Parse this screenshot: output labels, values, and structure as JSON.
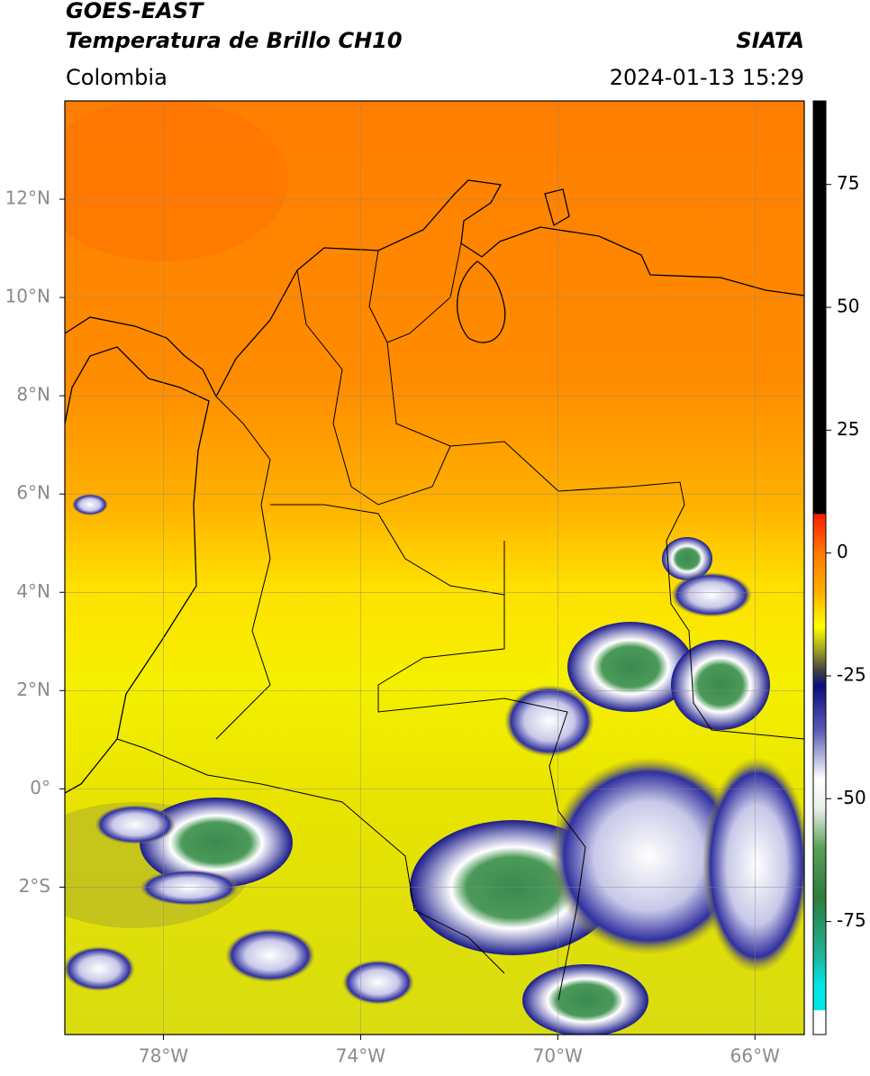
{
  "chart_data": {
    "type": "map",
    "title": "GOES-EAST",
    "subtitle": "Temperatura de Brillo CH10",
    "source": "SIATA",
    "region": "Colombia",
    "timestamp": "2024-01-13 15:29",
    "xlim": [
      -80,
      -65
    ],
    "ylim": [
      -5,
      14
    ],
    "xticks": [
      {
        "value": -78,
        "label": "78°W"
      },
      {
        "value": -74,
        "label": "74°W"
      },
      {
        "value": -70,
        "label": "70°W"
      },
      {
        "value": -66,
        "label": "66°W"
      }
    ],
    "yticks": [
      {
        "value": 12,
        "label": "12°N"
      },
      {
        "value": 10,
        "label": "10°N"
      },
      {
        "value": 8,
        "label": "8°N"
      },
      {
        "value": 6,
        "label": "6°N"
      },
      {
        "value": 4,
        "label": "4°N"
      },
      {
        "value": 2,
        "label": "2°N"
      },
      {
        "value": 0,
        "label": "0°"
      },
      {
        "value": -2,
        "label": "2°S"
      }
    ],
    "grid": true,
    "colorbar": {
      "lim": [
        -98,
        92
      ],
      "ticks": [
        75,
        50,
        25,
        0,
        -25,
        -50,
        -75
      ],
      "colormap": [
        {
          "value": 92,
          "color": "#000000"
        },
        {
          "value": 8,
          "color": "#000000"
        },
        {
          "value": 7.9,
          "color": "#ff1a00"
        },
        {
          "value": 0,
          "color": "#ff7a00"
        },
        {
          "value": -8,
          "color": "#ffb000"
        },
        {
          "value": -15,
          "color": "#ffff00"
        },
        {
          "value": -20,
          "color": "#9c9c28"
        },
        {
          "value": -24,
          "color": "#404040"
        },
        {
          "value": -27,
          "color": "#0c0c80"
        },
        {
          "value": -36,
          "color": "#5a5ab4"
        },
        {
          "value": -46,
          "color": "#ffffff"
        },
        {
          "value": -52,
          "color": "#e8f0e8"
        },
        {
          "value": -60,
          "color": "#5aa05a"
        },
        {
          "value": -70,
          "color": "#2e7d3c"
        },
        {
          "value": -82,
          "color": "#1fb49a"
        },
        {
          "value": -87.9,
          "color": "#00e5e5"
        },
        {
          "value": -93,
          "color": "#00e5e5"
        },
        {
          "value": -93.1,
          "color": "#ffffff"
        },
        {
          "value": -98,
          "color": "#ffffff"
        }
      ]
    }
  }
}
